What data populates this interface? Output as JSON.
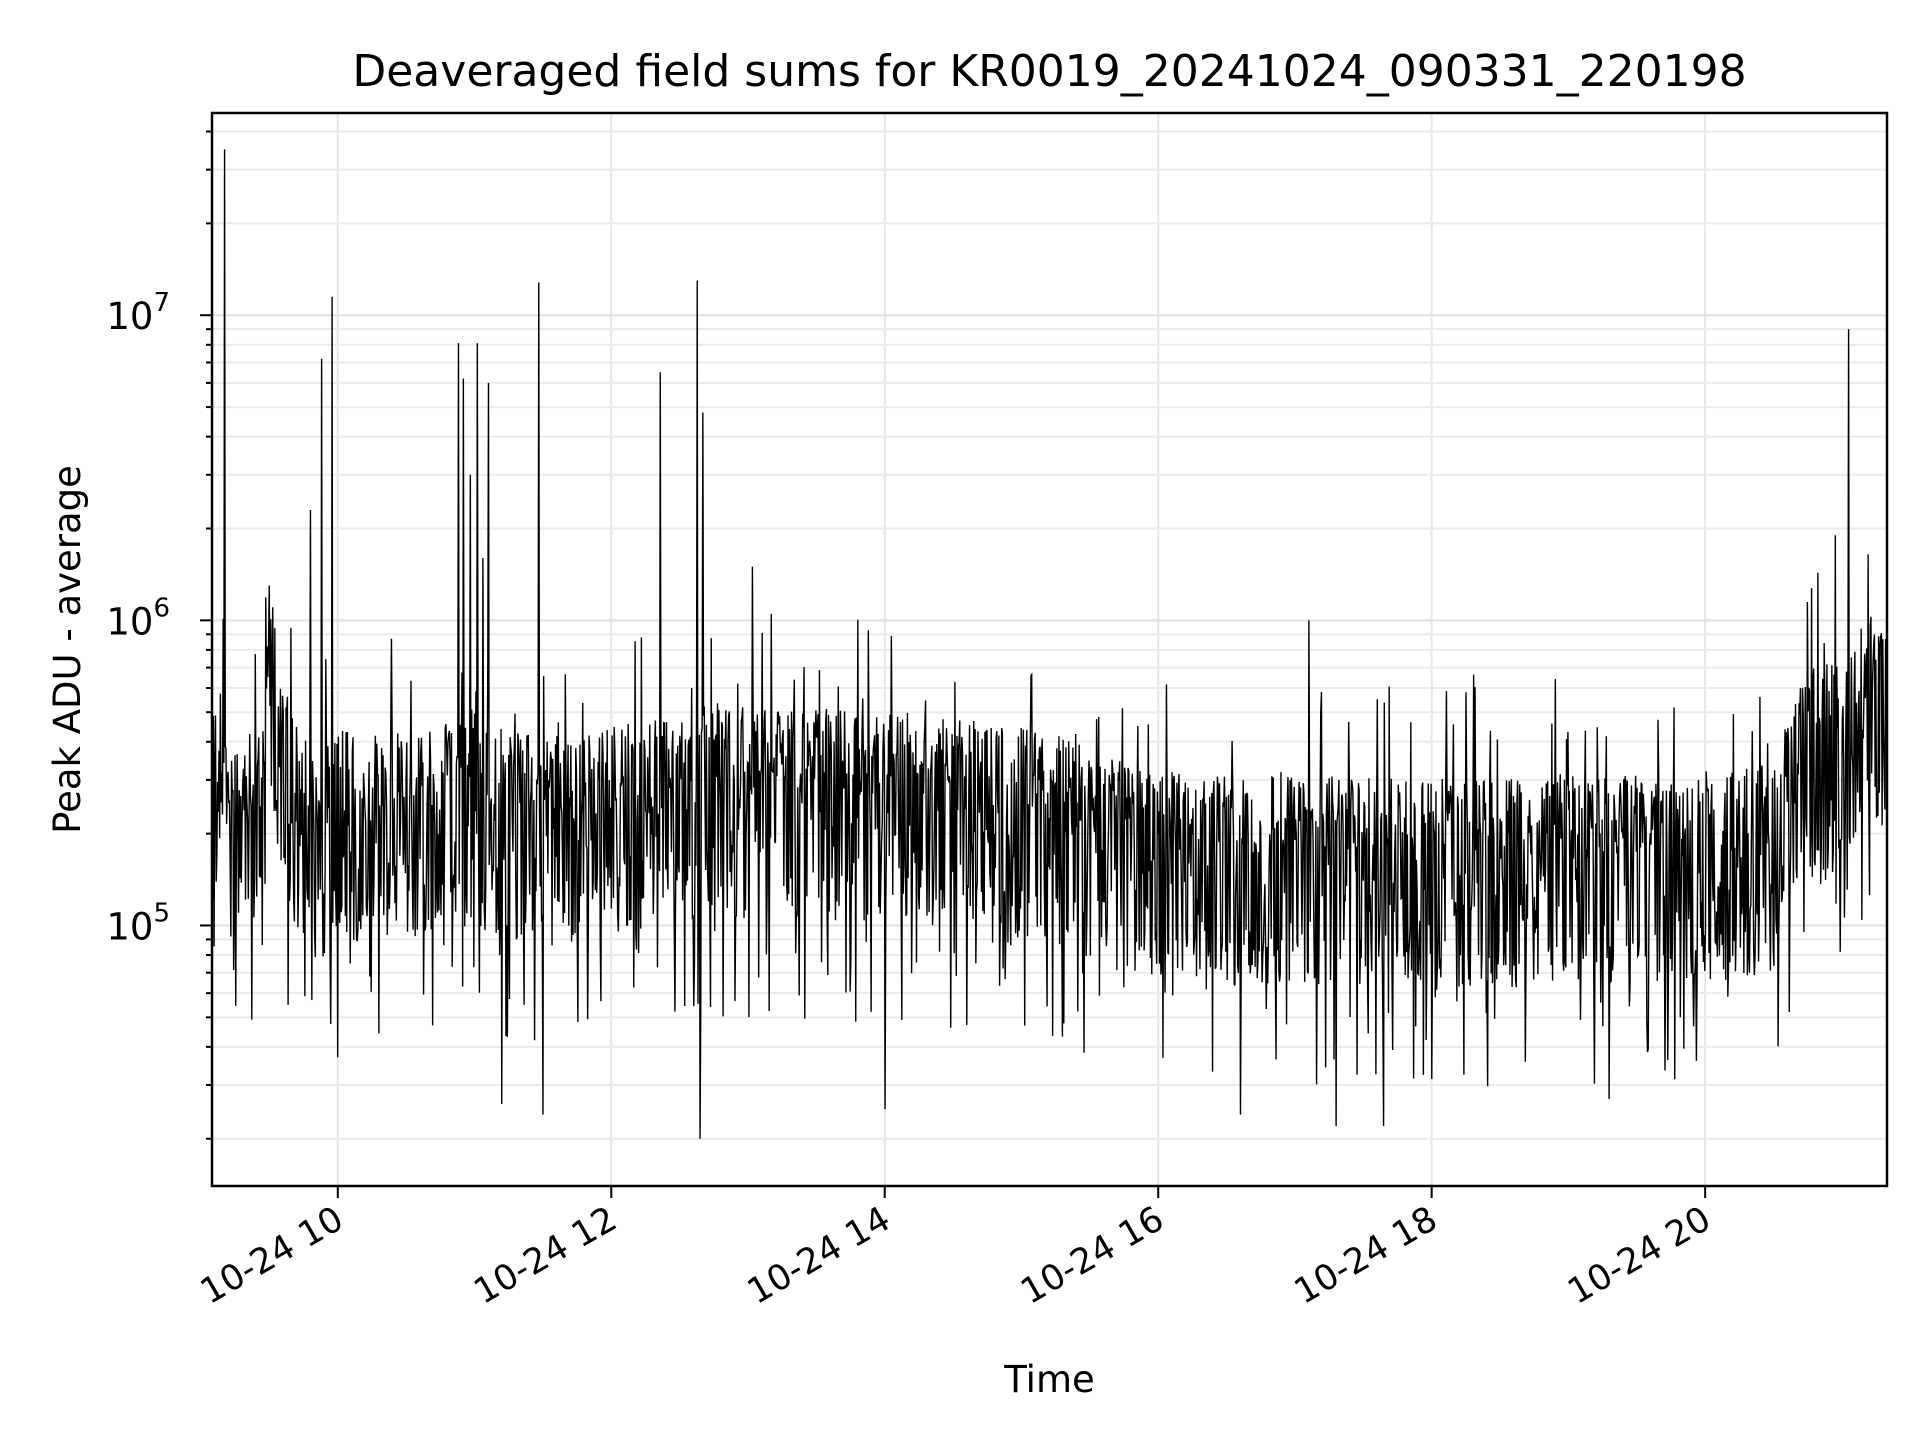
{
  "chart_data": {
    "type": "line",
    "title": "Deaveraged field sums for KR0019_20241024_090331_220198",
    "xlabel": "Time",
    "ylabel": "Peak ADU - average",
    "x_unit": "hour of day (2024-10-24)",
    "xlim": [
      9.08,
      21.33
    ],
    "ylim": [
      14000,
      46000000
    ],
    "yscale": "log",
    "grid": true,
    "legend": "none",
    "line_color": "#000000",
    "xticks": [
      {
        "value": 10,
        "label": "10-24 10"
      },
      {
        "value": 12,
        "label": "10-24 12"
      },
      {
        "value": 14,
        "label": "10-24 14"
      },
      {
        "value": 16,
        "label": "10-24 16"
      },
      {
        "value": 18,
        "label": "10-24 18"
      },
      {
        "value": 20,
        "label": "10-24 20"
      }
    ],
    "yticks": [
      {
        "value": 100000,
        "base": "10",
        "exp": "5"
      },
      {
        "value": 1000000,
        "base": "10",
        "exp": "6"
      },
      {
        "value": 10000000,
        "base": "10",
        "exp": "7"
      }
    ],
    "series": [
      {
        "x": [
          9.08,
          9.15,
          9.25,
          9.35,
          9.45,
          9.5,
          9.55,
          9.65,
          9.75,
          9.85,
          9.95,
          10.1,
          10.3,
          10.5,
          10.7,
          10.85,
          10.95,
          11.1,
          11.3,
          11.5,
          11.7,
          11.9,
          12.1,
          12.3,
          12.5,
          12.7,
          12.9,
          13.1,
          13.3,
          13.5,
          13.7,
          13.9,
          14.1,
          14.3,
          14.5,
          14.7,
          14.9,
          15.1,
          15.3,
          15.5,
          15.7,
          15.9,
          16.1,
          16.3,
          16.5,
          16.7,
          16.9,
          17.1,
          17.3,
          17.5,
          17.7,
          17.9,
          18.1,
          18.3,
          18.5,
          18.7,
          18.9,
          19.1,
          19.3,
          19.5,
          19.7,
          19.9,
          20.1,
          20.3,
          20.5,
          20.7,
          20.8,
          20.9,
          21.0,
          21.1,
          21.2,
          21.3
        ],
        "y": [
          300000,
          260000,
          230000,
          240000,
          220000,
          750000,
          450000,
          280000,
          230000,
          200000,
          220000,
          230000,
          240000,
          220000,
          230000,
          250000,
          280000,
          240000,
          230000,
          220000,
          220000,
          230000,
          240000,
          250000,
          260000,
          280000,
          270000,
          280000,
          270000,
          270000,
          270000,
          260000,
          265000,
          260000,
          250000,
          250000,
          240000,
          230000,
          220000,
          200000,
          185000,
          175000,
          175000,
          170000,
          165000,
          165000,
          165000,
          165000,
          165000,
          160000,
          160000,
          160000,
          160000,
          160000,
          160000,
          160000,
          165000,
          165000,
          165000,
          165000,
          165000,
          170000,
          170000,
          175000,
          180000,
          330000,
          380000,
          400000,
          420000,
          480000,
          550000,
          520000
        ]
      }
    ],
    "spikes": [
      {
        "x": 9.17,
        "y": 35000000
      },
      {
        "x": 9.8,
        "y": 2300000
      },
      {
        "x": 9.88,
        "y": 7200000
      },
      {
        "x": 9.96,
        "y": 11500000
      },
      {
        "x": 10.88,
        "y": 8100000
      },
      {
        "x": 10.92,
        "y": 6200000
      },
      {
        "x": 10.97,
        "y": 3000000
      },
      {
        "x": 11.02,
        "y": 8100000
      },
      {
        "x": 11.06,
        "y": 1600000
      },
      {
        "x": 11.1,
        "y": 6000000
      },
      {
        "x": 11.47,
        "y": 12800000
      },
      {
        "x": 12.36,
        "y": 6500000
      },
      {
        "x": 12.63,
        "y": 13000000
      },
      {
        "x": 12.67,
        "y": 4800000
      },
      {
        "x": 13.03,
        "y": 1500000
      },
      {
        "x": 17.1,
        "y": 1000000
      },
      {
        "x": 20.95,
        "y": 1900000
      },
      {
        "x": 21.05,
        "y": 9000000
      }
    ],
    "dips": [
      {
        "x": 10.0,
        "y": 37000
      },
      {
        "x": 11.2,
        "y": 26000
      },
      {
        "x": 11.5,
        "y": 24000
      },
      {
        "x": 12.65,
        "y": 20000
      },
      {
        "x": 14.0,
        "y": 25000
      },
      {
        "x": 16.6,
        "y": 24000
      },
      {
        "x": 17.3,
        "y": 22000
      },
      {
        "x": 17.65,
        "y": 22000
      },
      {
        "x": 19.3,
        "y": 27000
      }
    ]
  }
}
